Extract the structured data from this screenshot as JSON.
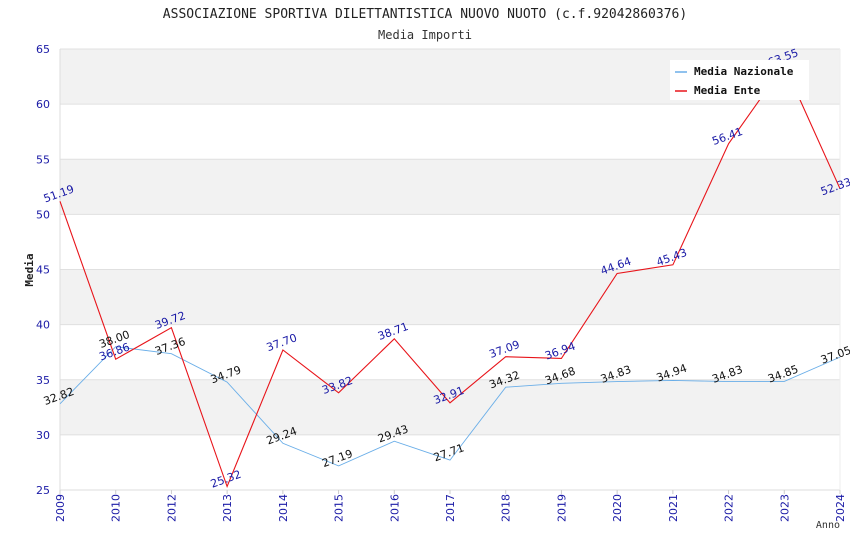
{
  "chart_data": {
    "type": "line",
    "title": "ASSOCIAZIONE SPORTIVA DILETTANTISTICA NUOVO NUOTO (c.f.92042860376)",
    "subtitle": "Media Importi",
    "xlabel": "Anno",
    "ylabel": "Media",
    "ylim": [
      25,
      65
    ],
    "yticks": [
      25,
      30,
      35,
      40,
      45,
      50,
      55,
      60,
      65
    ],
    "categories": [
      "2009",
      "2010",
      "2012",
      "2013",
      "2014",
      "2015",
      "2016",
      "2017",
      "2018",
      "2019",
      "2020",
      "2021",
      "2022",
      "2023",
      "2024"
    ],
    "series": [
      {
        "name": "Media Nazionale",
        "color": "#6aaee8",
        "values": [
          32.82,
          38.0,
          37.36,
          34.79,
          29.24,
          27.19,
          29.43,
          27.71,
          34.32,
          34.68,
          34.83,
          34.94,
          34.83,
          34.85,
          37.05
        ],
        "labels": [
          "32.82",
          "38.00",
          "37.36",
          "34.79",
          "29.24",
          "27.19",
          "29.43",
          "27.71",
          "34.32",
          "34.68",
          "34.83",
          "34.94",
          "34.83",
          "34.85",
          "37.05"
        ]
      },
      {
        "name": "Media Ente",
        "color": "#e8141a",
        "values": [
          51.19,
          36.86,
          39.72,
          25.32,
          37.7,
          33.82,
          38.71,
          32.91,
          37.09,
          36.94,
          44.64,
          45.43,
          56.41,
          63.55,
          52.33
        ],
        "labels": [
          "51.19",
          "36.86",
          "39.72",
          "25.32",
          "37.70",
          "33.82",
          "38.71",
          "32.91",
          "37.09",
          "36.94",
          "44.64",
          "45.43",
          "56.41",
          "63.55",
          "52.33"
        ]
      }
    ],
    "grid": true,
    "legend": "top-right"
  }
}
